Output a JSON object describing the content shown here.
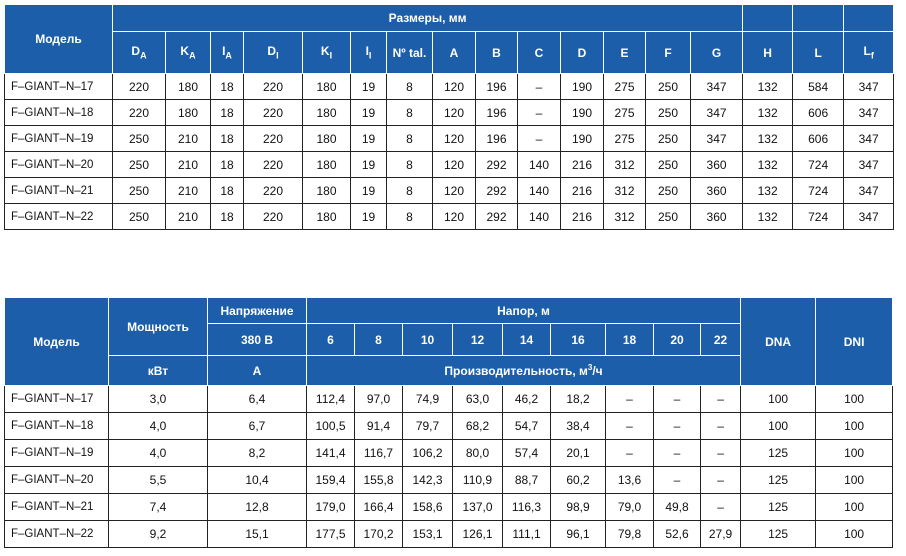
{
  "table1": {
    "model_header": "Модель",
    "group_header": "Размеры, мм",
    "columns": [
      {
        "text": "D",
        "sub": "A"
      },
      {
        "text": "K",
        "sub": "A"
      },
      {
        "text": "I",
        "sub": "A"
      },
      {
        "text": "D",
        "sub": "I"
      },
      {
        "text": "K",
        "sub": "I"
      },
      {
        "text": "I",
        "sub": "I"
      },
      {
        "text": "Nº tal."
      },
      {
        "text": "A"
      },
      {
        "text": "B"
      },
      {
        "text": "C"
      },
      {
        "text": "D"
      },
      {
        "text": "E"
      },
      {
        "text": "F"
      },
      {
        "text": "G"
      },
      {
        "text": "H"
      },
      {
        "text": "L"
      },
      {
        "text": "L",
        "sub": "f"
      }
    ],
    "rows": [
      [
        "F–GIANT–N–17",
        "220",
        "180",
        "18",
        "220",
        "180",
        "19",
        "8",
        "120",
        "196",
        "–",
        "190",
        "275",
        "250",
        "347",
        "132",
        "584",
        "347"
      ],
      [
        "F–GIANT–N–18",
        "220",
        "180",
        "18",
        "220",
        "180",
        "19",
        "8",
        "120",
        "196",
        "–",
        "190",
        "275",
        "250",
        "347",
        "132",
        "606",
        "347"
      ],
      [
        "F–GIANT–N–19",
        "250",
        "210",
        "18",
        "220",
        "180",
        "19",
        "8",
        "120",
        "196",
        "–",
        "190",
        "275",
        "250",
        "347",
        "132",
        "606",
        "347"
      ],
      [
        "F–GIANT–N–20",
        "250",
        "210",
        "18",
        "220",
        "180",
        "19",
        "8",
        "120",
        "292",
        "140",
        "216",
        "312",
        "250",
        "360",
        "132",
        "724",
        "347"
      ],
      [
        "F–GIANT–N–21",
        "250",
        "210",
        "18",
        "220",
        "180",
        "19",
        "8",
        "120",
        "292",
        "140",
        "216",
        "312",
        "250",
        "360",
        "132",
        "724",
        "347"
      ],
      [
        "F–GIANT–N–22",
        "250",
        "210",
        "18",
        "220",
        "180",
        "19",
        "8",
        "120",
        "292",
        "140",
        "216",
        "312",
        "250",
        "360",
        "132",
        "724",
        "347"
      ]
    ]
  },
  "table2": {
    "model_header": "Модель",
    "power_header": "Мощность",
    "power_unit": "кВт",
    "voltage_header": "Напряжение",
    "voltage_value": "380 В",
    "current_unit": "A",
    "head_header": "Напор, м",
    "heads": [
      "6",
      "8",
      "10",
      "12",
      "14",
      "16",
      "18",
      "20",
      "22"
    ],
    "flow_header": {
      "text": "Производительность, м",
      "sup": "3",
      "after": "/ч"
    },
    "dna_header": "DNA",
    "dni_header": "DNI",
    "rows": [
      [
        "F–GIANT–N–17",
        "3,0",
        "6,4",
        "112,4",
        "97,0",
        "74,9",
        "63,0",
        "46,2",
        "18,2",
        "–",
        "–",
        "–",
        "100",
        "100"
      ],
      [
        "F–GIANT–N–18",
        "4,0",
        "6,7",
        "100,5",
        "91,4",
        "79,7",
        "68,2",
        "54,7",
        "38,4",
        "–",
        "–",
        "–",
        "100",
        "100"
      ],
      [
        "F–GIANT–N–19",
        "4,0",
        "8,2",
        "141,4",
        "116,7",
        "106,2",
        "80,0",
        "57,4",
        "20,1",
        "–",
        "–",
        "–",
        "125",
        "100"
      ],
      [
        "F–GIANT–N–20",
        "5,5",
        "10,4",
        "159,4",
        "155,8",
        "142,3",
        "110,9",
        "88,7",
        "60,2",
        "13,6",
        "–",
        "–",
        "125",
        "100"
      ],
      [
        "F–GIANT–N–21",
        "7,4",
        "12,8",
        "179,0",
        "166,4",
        "158,6",
        "137,0",
        "116,3",
        "98,9",
        "79,0",
        "49,8",
        "–",
        "125",
        "100"
      ],
      [
        "F–GIANT–N–22",
        "9,2",
        "15,1",
        "177,5",
        "170,2",
        "153,1",
        "126,1",
        "111,1",
        "96,1",
        "79,8",
        "52,6",
        "27,9",
        "125",
        "100"
      ]
    ]
  }
}
